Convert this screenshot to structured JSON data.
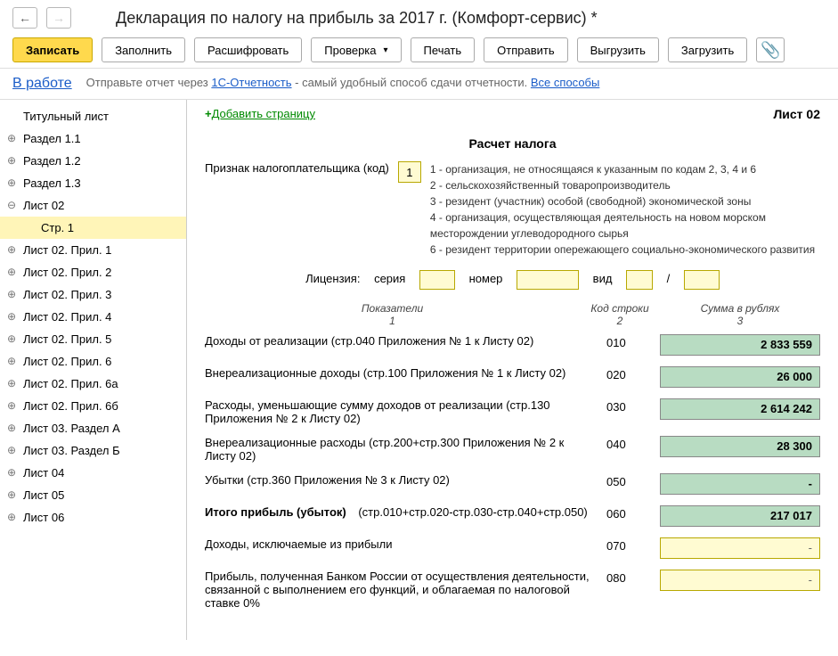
{
  "title": "Декларация по налогу на прибыль за 2017 г. (Комфорт-сервис) *",
  "toolbar": {
    "write": "Записать",
    "fill": "Заполнить",
    "decode": "Расшифровать",
    "check": "Проверка",
    "print": "Печать",
    "send": "Отправить",
    "upload": "Выгрузить",
    "load": "Загрузить"
  },
  "status": "В работе",
  "info": {
    "prefix": "Отправьте отчет через",
    "link1": "1С-Отчетность",
    "middle": "- самый удобный способ сдачи отчетности.",
    "link2": "Все способы"
  },
  "tree": [
    {
      "label": "Титульный лист",
      "children": false,
      "root": true
    },
    {
      "label": "Раздел 1.1",
      "children": true
    },
    {
      "label": "Раздел 1.2",
      "children": true
    },
    {
      "label": "Раздел 1.3",
      "children": true
    },
    {
      "label": "Лист 02",
      "children": true,
      "expanded": true
    },
    {
      "label": "Стр. 1",
      "child": true,
      "selected": true
    },
    {
      "label": "Лист 02. Прил. 1",
      "children": true
    },
    {
      "label": "Лист 02. Прил. 2",
      "children": true
    },
    {
      "label": "Лист 02. Прил. 3",
      "children": true
    },
    {
      "label": "Лист 02. Прил. 4",
      "children": true
    },
    {
      "label": "Лист 02. Прил. 5",
      "children": true
    },
    {
      "label": "Лист 02. Прил. 6",
      "children": true
    },
    {
      "label": "Лист 02. Прил. 6а",
      "children": true
    },
    {
      "label": "Лист 02. Прил. 6б",
      "children": true
    },
    {
      "label": "Лист 03. Раздел А",
      "children": true
    },
    {
      "label": "Лист 03. Раздел Б",
      "children": true
    },
    {
      "label": "Лист 04",
      "children": true
    },
    {
      "label": "Лист 05",
      "children": true
    },
    {
      "label": "Лист 06",
      "children": true
    }
  ],
  "form": {
    "add_page": "Добавить страницу",
    "sheet": "Лист 02",
    "heading": "Расчет налога",
    "taxpayer_label": "Признак налогоплательщика (код)",
    "taxpayer_code": "1",
    "taxpayer_codes": [
      "1 - организация, не относящаяся к указанным по кодам 2, 3, 4 и 6",
      "2 - сельскохозяйственный товаропроизводитель",
      "3 - резидент (участник) особой (свободной) экономической зоны",
      "4 - организация, осуществляющая деятельность на новом морском месторождении углеводородного сырья",
      "6 - резидент территории опережающего социально-экономического развития"
    ],
    "license": {
      "label": "Лицензия:",
      "series": "серия",
      "number": "номер",
      "type": "вид",
      "slash": "/"
    },
    "table_header": {
      "ind": "Показатели",
      "ind_n": "1",
      "code": "Код строки",
      "code_n": "2",
      "sum": "Сумма в рублях",
      "sum_n": "3"
    },
    "rows": [
      {
        "ind": "Доходы от реализации (стр.040 Приложения № 1 к Листу 02)",
        "code": "010",
        "val": "2 833 559",
        "style": "green"
      },
      {
        "ind": "Внереализационные доходы (стр.100 Приложения № 1 к Листу 02)",
        "code": "020",
        "val": "26 000",
        "style": "green"
      },
      {
        "ind": "Расходы, уменьшающие сумму доходов от реализации (стр.130 Приложения № 2 к Листу 02)",
        "code": "030",
        "val": "2 614 242",
        "style": "green"
      },
      {
        "ind": "Внереализационные расходы (стр.200+стр.300 Приложения № 2 к Листу 02)",
        "code": "040",
        "val": "28 300",
        "style": "green"
      },
      {
        "ind": "Убытки (стр.360 Приложения № 3 к Листу 02)",
        "code": "050",
        "val": "-",
        "style": "green"
      },
      {
        "ind": "Итого прибыль (убыток)",
        "ind2": "(стр.010+стр.020-стр.030-стр.040+стр.050)",
        "code": "060",
        "val": "217 017",
        "style": "green",
        "bold": true
      },
      {
        "ind": "Доходы, исключаемые из прибыли",
        "code": "070",
        "val": "-",
        "style": "yellow"
      },
      {
        "ind": "Прибыль, полученная Банком России от осуществления деятельности, связанной с выполнением его функций, и облагаемая по налоговой ставке 0%",
        "code": "080",
        "val": "-",
        "style": "yellow"
      }
    ]
  },
  "colors": {
    "primary_btn": "#ffd94d",
    "field_yellow": "#fffbd2",
    "field_green": "#b8dcc2",
    "link": "#1a5cc8"
  }
}
